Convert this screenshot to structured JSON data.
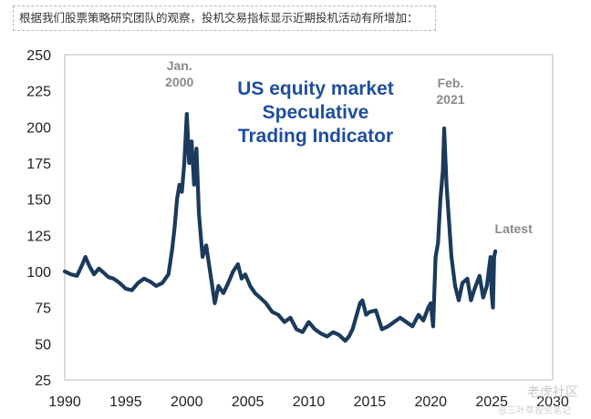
{
  "caption": "根据我们股票策略研究团队的观察，投机交易指标显示近期投机活动有所增加：",
  "watermark": {
    "brand": "老虎社区",
    "account": "@三叶草投资笔记"
  },
  "chart_data": {
    "type": "line",
    "title": "US equity market Speculative Trading Indicator",
    "title_lines": [
      "US equity market",
      "Speculative",
      "Trading Indicator"
    ],
    "xlabel": "",
    "ylabel": "",
    "xlim": [
      1990,
      2030
    ],
    "ylim": [
      25,
      250
    ],
    "x_ticks": [
      1990,
      1995,
      2000,
      2005,
      2010,
      2015,
      2020,
      2025,
      2030
    ],
    "y_ticks": [
      25,
      50,
      75,
      100,
      125,
      150,
      175,
      200,
      225,
      250
    ],
    "grid": false,
    "line_color": "#1b3a5c",
    "title_color": "#1f4e9c",
    "annotation_color": "#8a8a8a",
    "annotations": [
      {
        "lines": [
          "Jan.",
          "2000"
        ],
        "x": 2000.0,
        "y": 209
      },
      {
        "lines": [
          "Feb.",
          "2021"
        ],
        "x": 2021.1,
        "y": 199
      },
      {
        "lines": [
          "Latest"
        ],
        "x": 2025.3,
        "y": 114
      }
    ],
    "series": [
      {
        "x": [
          1990.0,
          1990.5,
          1991.0,
          1991.4,
          1991.7,
          1992.0,
          1992.4,
          1992.8,
          1993.2,
          1993.6,
          1994.0,
          1994.5,
          1995.0,
          1995.5,
          1996.0,
          1996.5,
          1997.0,
          1997.5,
          1998.0,
          1998.5,
          1998.8,
          1999.0,
          1999.2,
          1999.4,
          1999.6,
          1999.8,
          2000.0,
          2000.2,
          2000.4,
          2000.6,
          2000.8,
          2001.0,
          2001.3,
          2001.6,
          2002.0,
          2002.3,
          2002.6,
          2003.0,
          2003.4,
          2003.8,
          2004.2,
          2004.5,
          2004.8,
          2005.2,
          2005.6,
          2006.0,
          2006.5,
          2007.0,
          2007.5,
          2008.0,
          2008.5,
          2009.0,
          2009.5,
          2010.0,
          2010.5,
          2011.0,
          2011.5,
          2012.0,
          2012.5,
          2013.0,
          2013.3,
          2013.6,
          2014.0,
          2014.2,
          2014.4,
          2014.7,
          2015.0,
          2015.5,
          2016.0,
          2016.5,
          2017.0,
          2017.5,
          2018.0,
          2018.5,
          2019.0,
          2019.4,
          2019.8,
          2020.0,
          2020.2,
          2020.4,
          2020.6,
          2020.8,
          2021.0,
          2021.1,
          2021.3,
          2021.5,
          2021.7,
          2022.0,
          2022.3,
          2022.6,
          2023.0,
          2023.3,
          2023.6,
          2024.0,
          2024.3,
          2024.6,
          2024.9,
          2025.0,
          2025.1,
          2025.2,
          2025.3
        ],
        "y": [
          100,
          98,
          97,
          104,
          110,
          104,
          98,
          102,
          99,
          96,
          95,
          92,
          88,
          87,
          92,
          95,
          93,
          90,
          92,
          98,
          115,
          130,
          150,
          160,
          155,
          175,
          209,
          175,
          190,
          160,
          185,
          140,
          110,
          118,
          95,
          78,
          90,
          85,
          92,
          100,
          105,
          95,
          98,
          90,
          85,
          82,
          78,
          72,
          70,
          65,
          68,
          60,
          58,
          65,
          60,
          57,
          55,
          58,
          56,
          52,
          55,
          60,
          72,
          78,
          80,
          70,
          72,
          73,
          60,
          62,
          65,
          68,
          65,
          62,
          70,
          66,
          75,
          78,
          62,
          110,
          120,
          150,
          170,
          199,
          160,
          135,
          110,
          90,
          80,
          92,
          95,
          80,
          88,
          97,
          82,
          90,
          110,
          85,
          75,
          110,
          114
        ]
      }
    ]
  }
}
